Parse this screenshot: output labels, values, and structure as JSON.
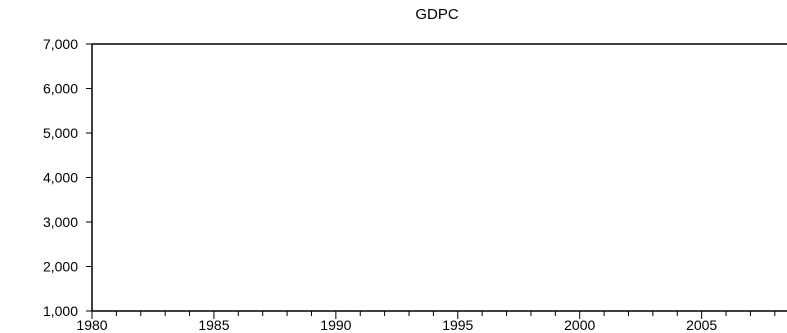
{
  "chart_data": {
    "type": "line",
    "title": "GDPC",
    "xlabel": "",
    "ylabel": "",
    "x_ticks": [
      "1980",
      "1985",
      "1990",
      "1995",
      "2000",
      "2005"
    ],
    "y_ticks": [
      "1,000",
      "2,000",
      "3,000",
      "4,000",
      "5,000",
      "6,000",
      "7,000"
    ],
    "xlim": [
      1980,
      2008.5
    ],
    "ylim": [
      1000,
      7000
    ],
    "series": [],
    "grid": false,
    "legend": "none",
    "colors": {
      "axis": "#000000",
      "frame": "#000000",
      "background": "#ffffff"
    }
  }
}
